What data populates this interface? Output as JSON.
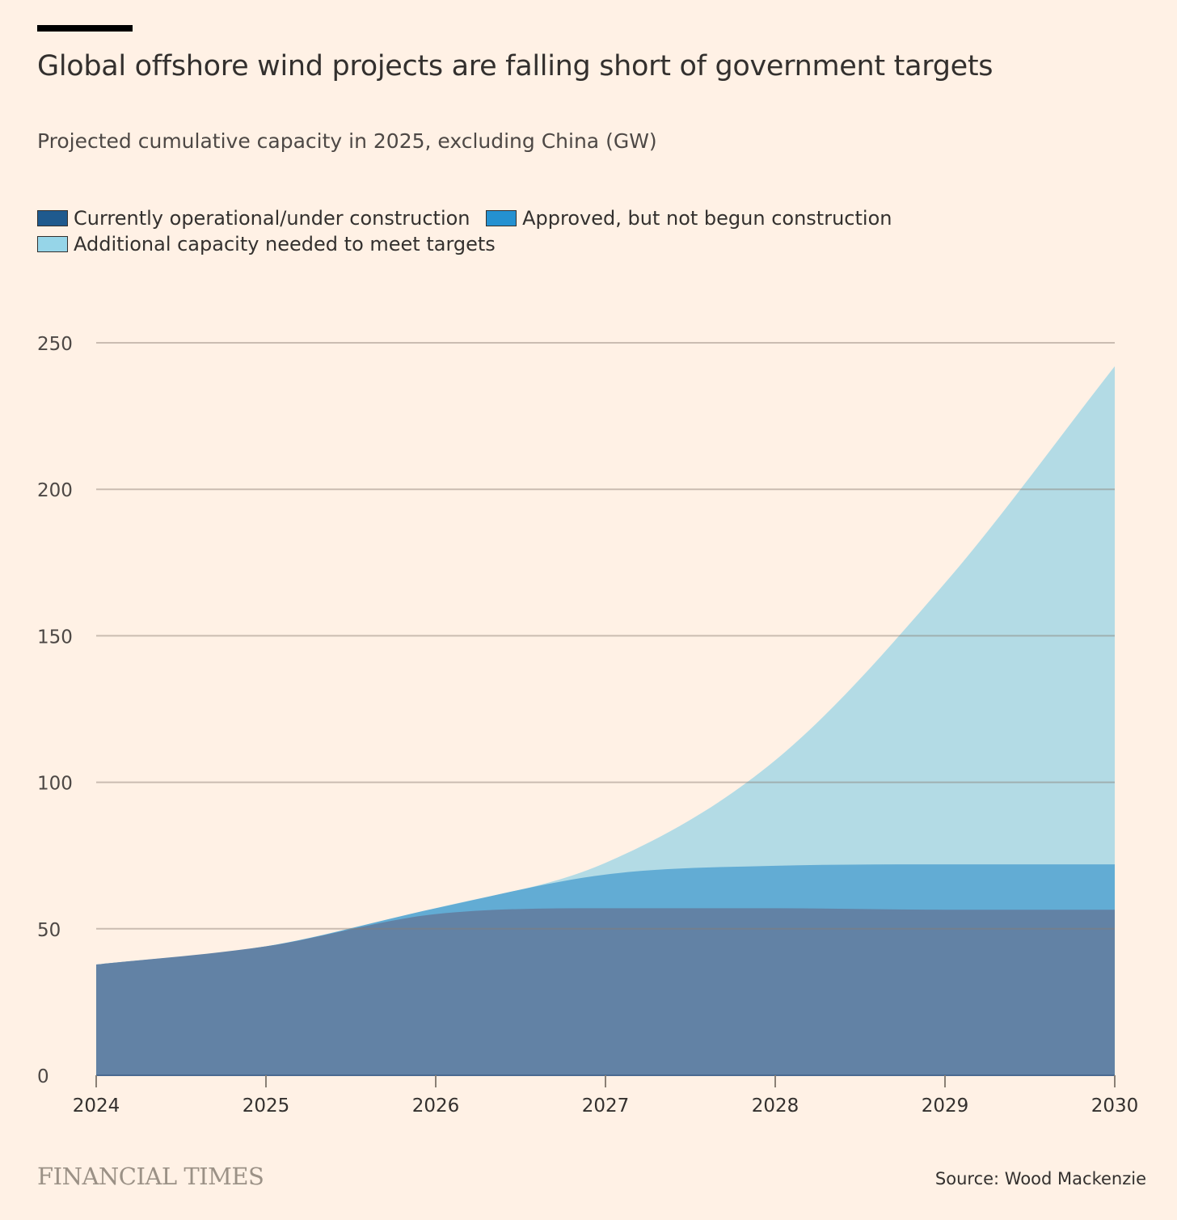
{
  "title": "Global offshore wind projects are falling short of government targets",
  "subtitle": "Projected cumulative capacity in 2025, excluding China (GW)",
  "branding": "FINANCIAL TIMES",
  "source": "Source: Wood Mackenzie",
  "chart_data": {
    "type": "area",
    "stacked": true,
    "title": "Global offshore wind projects are falling short of government targets",
    "subtitle": "Projected cumulative capacity in 2025, excluding China (GW)",
    "xlabel": "",
    "ylabel": "GW",
    "x": [
      2024,
      2025,
      2026,
      2027,
      2028,
      2029,
      2030
    ],
    "x_tick_labels": [
      "2024",
      "2025",
      "2026",
      "2027",
      "2028",
      "2029",
      "2030"
    ],
    "ylim": [
      0,
      250
    ],
    "y_ticks": [
      0,
      50,
      100,
      150,
      200,
      250
    ],
    "y_tick_labels": [
      "0",
      "50",
      "100",
      "150",
      "200",
      "250"
    ],
    "grid": true,
    "legend_position": "top-left",
    "series": [
      {
        "name": "Currently operational/under construction",
        "color": "#6282a5",
        "swatch": "#1f5a8e",
        "values": [
          37.8,
          44,
          55,
          57,
          57,
          56.5,
          56.5
        ]
      },
      {
        "name": "Approved, but not begun construction",
        "color": "#62acd4",
        "swatch": "#2491d1",
        "values": [
          0,
          0,
          2,
          11.5,
          14.5,
          15.5,
          15.5
        ]
      },
      {
        "name": "Additional capacity needed to meet targets",
        "color": "#b3dbe5",
        "swatch": "#96d5e8",
        "values": [
          0,
          0,
          0,
          4,
          36,
          96,
          170
        ]
      }
    ]
  }
}
